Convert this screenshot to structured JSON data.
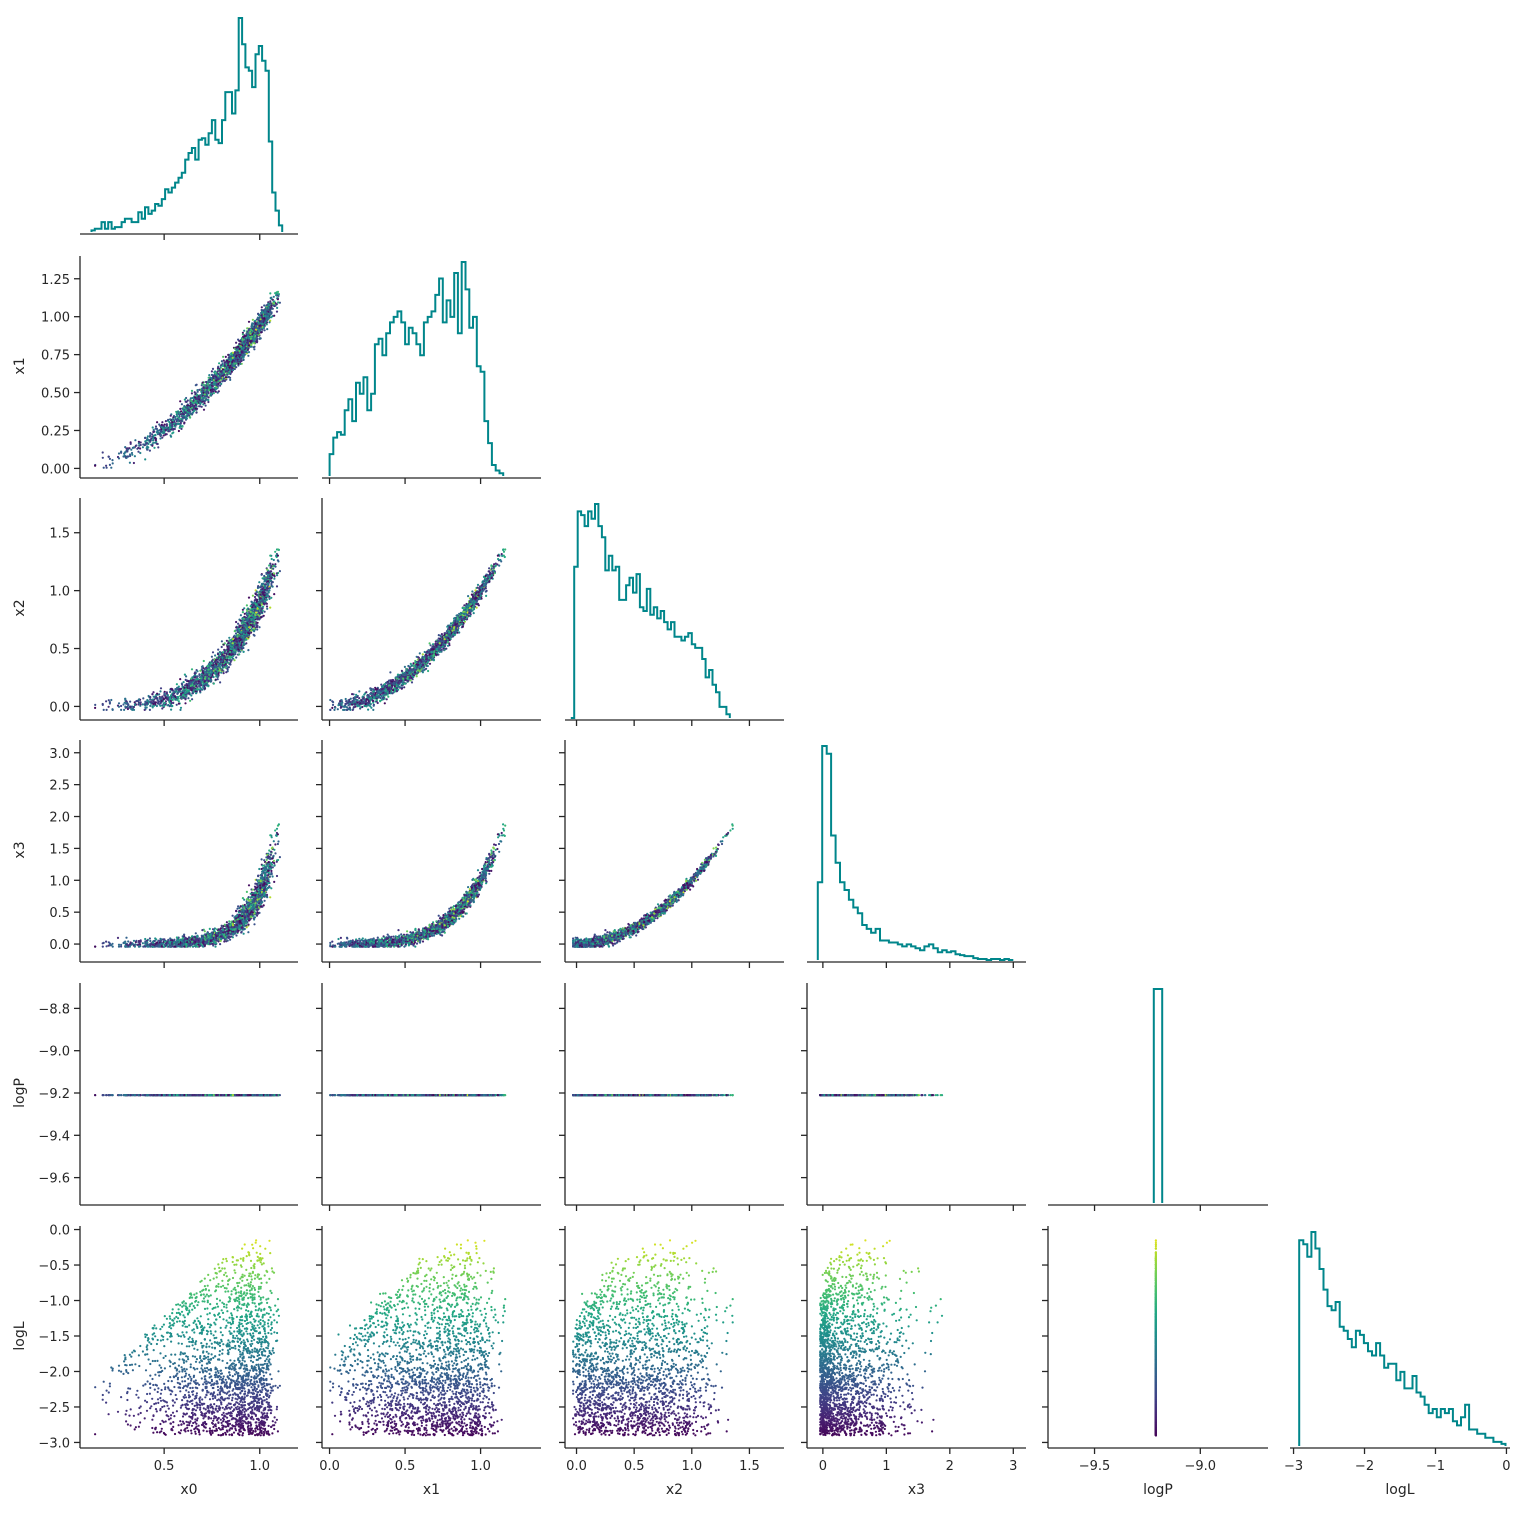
{
  "colors": {
    "histogram": "#00868b",
    "colormap": "viridis",
    "axes": "#262626"
  },
  "chart_data": {
    "type": "corner",
    "variables": [
      "x0",
      "x1",
      "x2",
      "x3",
      "logP",
      "logL"
    ],
    "xlabels": [
      "x0",
      "x1",
      "x2",
      "x3",
      "logP",
      "logL"
    ],
    "ylabels": [
      "",
      "x1",
      "x2",
      "x3",
      "logP",
      "logL"
    ],
    "color_by": "logL",
    "ranges": {
      "x0": [
        0.06,
        1.2
      ],
      "x1": [
        -0.05,
        1.4
      ],
      "x2": [
        -0.1,
        1.8
      ],
      "x3": [
        -0.25,
        3.2
      ],
      "logP": [
        -9.72,
        -8.68
      ],
      "logL": [
        -3.05,
        0.05
      ]
    },
    "ticks": {
      "x0": [
        "0.5",
        "1.0"
      ],
      "x1": [
        "0.0",
        "0.5",
        "1.0"
      ],
      "x2": [
        "0.0",
        "0.5",
        "1.0",
        "1.5"
      ],
      "x3": [
        "0",
        "1",
        "2",
        "3"
      ],
      "logP": [
        "−9.5",
        "−9.0"
      ],
      "logL": [
        "−3",
        "−2",
        "−1",
        "0"
      ]
    },
    "ytick_labels": {
      "x1": [
        "0.00",
        "0.25",
        "0.50",
        "0.75",
        "1.00",
        "1.25"
      ],
      "x2": [
        "0.0",
        "0.5",
        "1.0",
        "1.5"
      ],
      "x3": [
        "0.0",
        "0.5",
        "1.0",
        "1.5",
        "2.0",
        "2.5",
        "3.0"
      ],
      "logP": [
        "−8.8",
        "−9.0",
        "−9.2",
        "−9.4",
        "−9.6"
      ],
      "logL": [
        "0.0",
        "−0.5",
        "−1.0",
        "−1.5",
        "−2.0",
        "−2.5",
        "−3.0"
      ]
    },
    "ytick_values": {
      "x1": [
        0,
        0.25,
        0.5,
        0.75,
        1.0,
        1.25
      ],
      "x2": [
        0,
        0.5,
        1.0,
        1.5
      ],
      "x3": [
        0,
        0.5,
        1.0,
        1.5,
        2.0,
        2.5,
        3.0
      ],
      "logP": [
        -8.8,
        -9.0,
        -9.2,
        -9.4,
        -9.6
      ],
      "logL": [
        0,
        -0.5,
        -1.0,
        -1.5,
        -2.0,
        -2.5,
        -3.0
      ]
    },
    "xtick_values": {
      "x0": [
        0.5,
        1.0
      ],
      "x1": [
        0,
        0.5,
        1.0
      ],
      "x2": [
        0,
        0.5,
        1.0,
        1.5
      ],
      "x3": [
        0,
        1,
        2,
        3
      ],
      "logP": [
        -9.5,
        -9.0
      ],
      "logL": [
        -3,
        -2,
        -1,
        0
      ]
    },
    "histograms": {
      "x0": {
        "edges_start": 0.12,
        "bin_width": 0.0175,
        "counts": [
          1,
          2,
          2,
          6,
          2,
          6,
          2,
          3,
          3,
          6,
          8,
          8,
          6,
          6,
          12,
          8,
          15,
          11,
          13,
          17,
          16,
          20,
          26,
          24,
          27,
          30,
          33,
          36,
          44,
          48,
          51,
          44,
          56,
          57,
          53,
          60,
          68,
          56,
          54,
          68,
          85,
          85,
          72,
          86,
          130,
          114,
          100,
          98,
          88,
          108,
          113,
          104,
          98,
          55,
          24,
          13,
          4
        ]
      },
      "x1": {
        "edges_start": 0.0,
        "bin_width": 0.025,
        "counts": [
          8,
          14,
          16,
          15,
          24,
          28,
          20,
          34,
          30,
          36,
          24,
          30,
          48,
          50,
          44,
          52,
          56,
          58,
          60,
          56,
          48,
          54,
          52,
          48,
          44,
          56,
          58,
          60,
          66,
          72,
          56,
          64,
          58,
          74,
          52,
          78,
          68,
          54,
          58,
          40,
          38,
          20,
          12,
          4,
          2,
          1
        ]
      },
      "x2": {
        "edges_start": -0.05,
        "bin_width": 0.03,
        "counts": [
          0,
          82,
          112,
          110,
          104,
          112,
          108,
          116,
          104,
          98,
          80,
          88,
          80,
          82,
          64,
          64,
          72,
          76,
          68,
          78,
          60,
          58,
          70,
          56,
          60,
          54,
          58,
          52,
          48,
          52,
          44,
          44,
          42,
          44,
          46,
          40,
          38,
          38,
          32,
          22,
          26,
          18,
          14,
          6,
          6,
          2
        ]
      },
      "x3": {
        "edges_start": -0.08,
        "bin_width": 0.07,
        "counts": [
          80,
          220,
          212,
          128,
          100,
          80,
          72,
          62,
          54,
          48,
          36,
          32,
          28,
          32,
          20,
          20,
          18,
          18,
          16,
          14,
          16,
          14,
          12,
          10,
          14,
          16,
          12,
          8,
          10,
          8,
          9,
          6,
          5,
          4,
          4,
          2,
          1,
          1,
          0,
          1,
          1,
          0,
          1,
          0
        ]
      },
      "logP": {
        "edges_start": -9.22,
        "bin_width": 0.04,
        "counts": [
          1
        ]
      },
      "logL": {
        "edges_start": -2.92,
        "bin_width": 0.057,
        "counts": [
          100,
          98,
          92,
          104,
          96,
          86,
          76,
          68,
          66,
          70,
          58,
          56,
          52,
          48,
          56,
          54,
          50,
          46,
          44,
          50,
          44,
          38,
          40,
          40,
          32,
          36,
          28,
          28,
          34,
          26,
          24,
          20,
          16,
          18,
          14,
          18,
          16,
          18,
          12,
          10,
          14,
          20,
          8,
          8,
          6,
          6,
          4,
          4,
          2,
          2,
          1
        ]
      }
    },
    "relations": {
      "x1_of_x0": "x1 = 0.95 * x0^1.9 (+ scatter)",
      "x2_of_x1": "x2 = x1^2 (+ scatter)",
      "x3_of_x2": "x3 = x2^2 (+ scatter)",
      "logP_constant": -9.21
    }
  }
}
